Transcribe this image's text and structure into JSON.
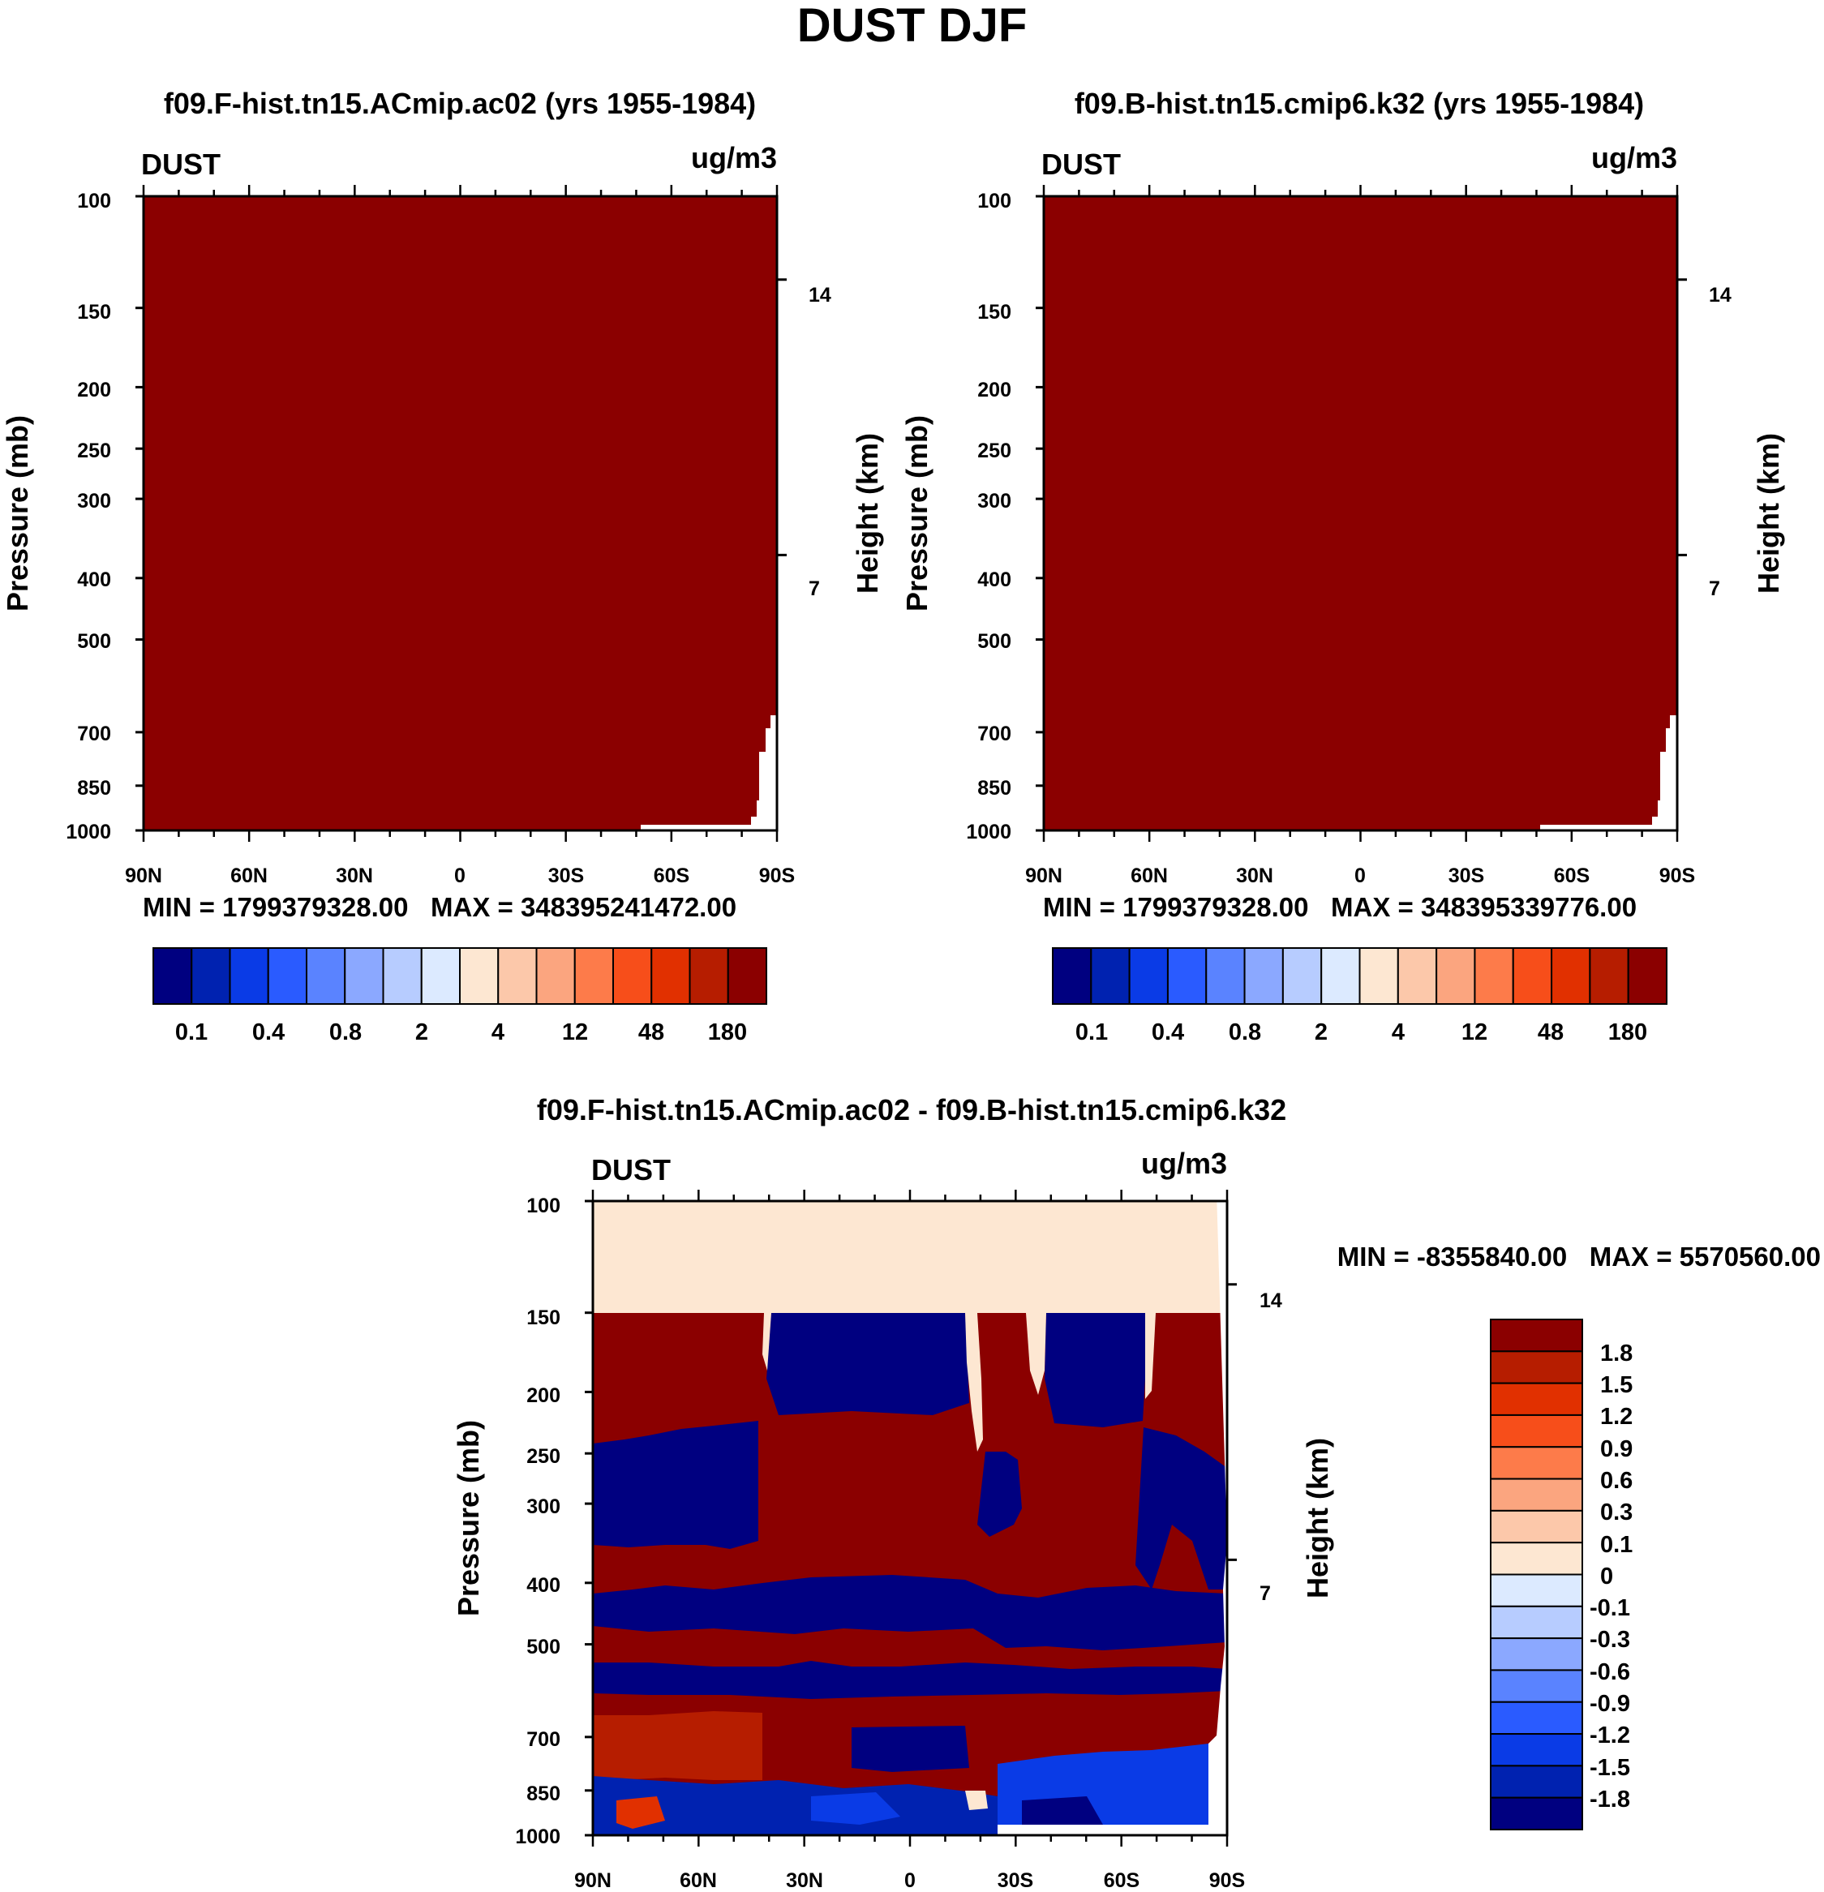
{
  "figure": {
    "title": "DUST DJF"
  },
  "colors": {
    "levels15": [
      "#000080",
      "#0022b0",
      "#0a3be6",
      "#2a5bff",
      "#5a83ff",
      "#8ba8ff",
      "#b7ccff",
      "#dceaff",
      "#fde7d2",
      "#fcc8aa",
      "#fba57f",
      "#fd7b4a",
      "#f74e1a",
      "#e13000",
      "#b61d00",
      "#8b0000"
    ],
    "fill_main": "#8b0000",
    "blank": "#ffffff"
  },
  "chart_data": [
    {
      "type": "heatmap",
      "title": "f09.F-hist.tn15.ACmip.ac02 (yrs 1955-1984)",
      "left_label": "DUST",
      "right_label": "ug/m3",
      "ylabel": "Pressure (mb)",
      "ylabel_right": "Height (km)",
      "x_ticks": [
        "90N",
        "60N",
        "30N",
        "0",
        "30S",
        "60S",
        "90S"
      ],
      "y_ticks": [
        "100",
        "150",
        "200",
        "250",
        "300",
        "400",
        "500",
        "700",
        "850",
        "1000"
      ],
      "y_ticks_right": [
        "14",
        "7"
      ],
      "ylim": [
        1000,
        100
      ],
      "min_max": "MIN = 1799379328.00   MAX = 348395241472.00",
      "colorbar_labels": [
        "0.1",
        "0.4",
        "0.8",
        "2",
        "4",
        "12",
        "48",
        "180"
      ],
      "field": "uniform value above 180 ug/m3 everywhere, except missing data near 60S-90S below ~680 mb"
    },
    {
      "type": "heatmap",
      "title": "f09.B-hist.tn15.cmip6.k32 (yrs 1955-1984)",
      "left_label": "DUST",
      "right_label": "ug/m3",
      "ylabel": "Pressure (mb)",
      "ylabel_right": "Height (km)",
      "x_ticks": [
        "90N",
        "60N",
        "30N",
        "0",
        "30S",
        "60S",
        "90S"
      ],
      "y_ticks": [
        "100",
        "150",
        "200",
        "250",
        "300",
        "400",
        "500",
        "700",
        "850",
        "1000"
      ],
      "y_ticks_right": [
        "14",
        "7"
      ],
      "ylim": [
        1000,
        100
      ],
      "min_max": "MIN = 1799379328.00   MAX = 348395339776.00",
      "colorbar_labels": [
        "0.1",
        "0.4",
        "0.8",
        "2",
        "4",
        "12",
        "48",
        "180"
      ],
      "field": "uniform value above 180 ug/m3 everywhere, except missing data near 60S-90S below ~680 mb"
    },
    {
      "type": "heatmap",
      "title": "f09.F-hist.tn15.ACmip.ac02 - f09.B-hist.tn15.cmip6.k32",
      "left_label": "DUST",
      "right_label": "ug/m3",
      "ylabel": "Pressure (mb)",
      "ylabel_right": "Height (km)",
      "x_ticks": [
        "90N",
        "60N",
        "30N",
        "0",
        "30S",
        "60S",
        "90S"
      ],
      "y_ticks": [
        "100",
        "150",
        "200",
        "250",
        "300",
        "400",
        "500",
        "700",
        "850",
        "1000"
      ],
      "y_ticks_right": [
        "14",
        "7"
      ],
      "ylim": [
        1000,
        100
      ],
      "min_max": "MIN = -8355840.00   MAX = 5570560.00",
      "colorbar_labels": [
        "1.8",
        "1.5",
        "1.2",
        "0.9",
        "0.6",
        "0.3",
        "0.1",
        "0",
        "-0.1",
        "-0.3",
        "-0.6",
        "-0.9",
        "-1.2",
        "-1.5",
        "-1.8"
      ],
      "field": "difference: 0 to 0.1 above 150 mb; alternating layers of >1.8 and <-1.8 below 150 mb"
    }
  ]
}
